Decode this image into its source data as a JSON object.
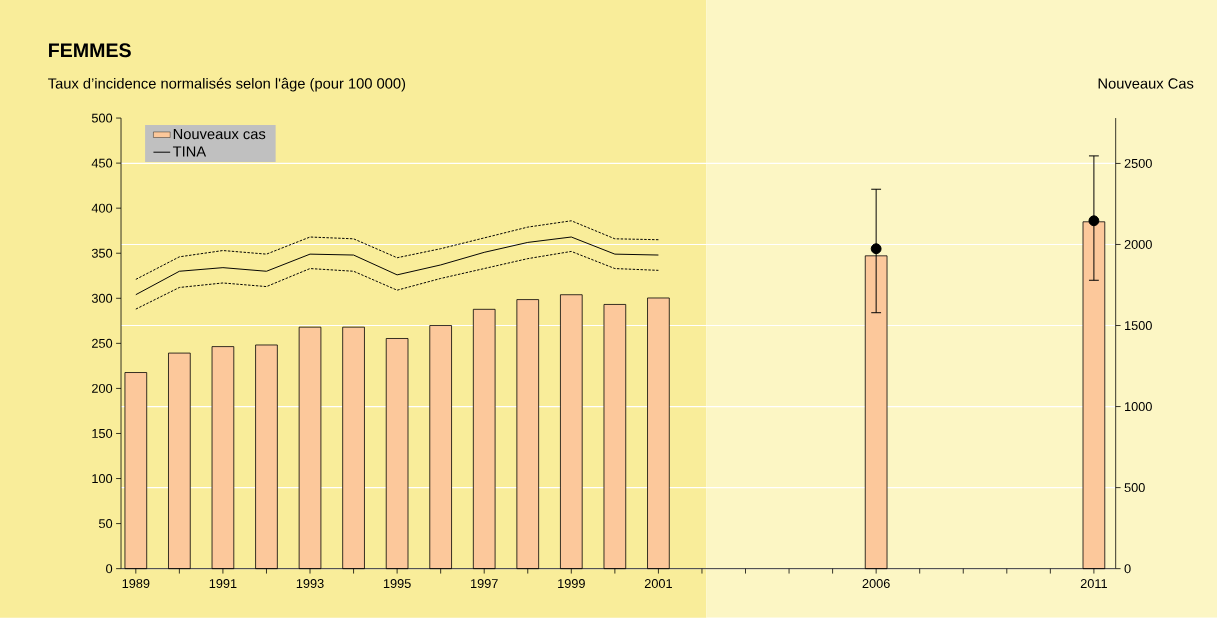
{
  "chart_data": {
    "type": "bar",
    "title": "FEMMES",
    "ylabel": "Taux d’incidence normalisés selon l'âge (pour 100 000)",
    "y2label": "Nouveaux Cas",
    "xlim": [
      1988.66,
      2011.5
    ],
    "xticks": [
      1989,
      {
        "value": 1990,
        "label": null
      },
      1991,
      {
        "value": 1992,
        "label": null
      },
      1993,
      {
        "value": 1994,
        "label": null
      },
      1995,
      {
        "value": 1996,
        "label": null
      },
      1997,
      {
        "value": 1998,
        "label": null
      },
      1999,
      {
        "value": 2000,
        "label": null
      },
      2001,
      {
        "value": 2002,
        "label": null
      },
      {
        "value": 2003,
        "label": null
      },
      {
        "value": 2004,
        "label": null
      },
      {
        "value": 2005,
        "label": null
      },
      2006,
      {
        "value": 2007,
        "label": null
      },
      {
        "value": 2008,
        "label": null
      },
      {
        "value": 2009,
        "label": null
      },
      {
        "value": 2010,
        "label": null
      },
      2011
    ],
    "ylim": [
      0,
      500
    ],
    "yticks": [
      0,
      50,
      100,
      150,
      200,
      250,
      300,
      350,
      400,
      450,
      500
    ],
    "y2lim": [
      0,
      2780
    ],
    "y2ticks": [
      0,
      500,
      1000,
      1500,
      2000,
      2500
    ],
    "grid": "y",
    "legend": "top left",
    "bands": [
      {
        "axis": "x",
        "from": 1988.66,
        "to": 2002.1,
        "color": "#f9ed9a"
      },
      {
        "axis": "x",
        "from": 2002.1,
        "to": 2011.5,
        "color": "#fcf6c4"
      }
    ],
    "series": [
      {
        "name": "Nouveaux cas",
        "axis": "y2",
        "color": "#fcc89b",
        "x": [
          1989,
          1990,
          1991,
          1992,
          1993,
          1994,
          1995,
          1996,
          1997,
          1998,
          1999,
          2000,
          2001,
          2006,
          2011
        ],
        "values": [
          1210,
          1330,
          1370,
          1380,
          1490,
          1490,
          1420,
          1500,
          1600,
          1660,
          1690,
          1630,
          1670,
          1930,
          2140
        ]
      },
      {
        "name": "TINA",
        "type": "line",
        "color": "#000000",
        "x": [
          1989,
          1990,
          1991,
          1992,
          1993,
          1994,
          1995,
          1996,
          1997,
          1998,
          1999,
          2000,
          2001
        ],
        "values": [
          304,
          330,
          334,
          330,
          349,
          348,
          326,
          337,
          351,
          362,
          368,
          349,
          348
        ]
      },
      {
        "type": "line",
        "line_style": "dotted",
        "color": "#000000",
        "x": [
          1989,
          1990,
          1991,
          1992,
          1993,
          1994,
          1995,
          1996,
          1997,
          1998,
          1999,
          2000,
          2001
        ],
        "values": [
          321,
          346,
          353,
          349,
          368,
          366,
          345,
          355,
          367,
          379,
          386,
          366,
          365
        ]
      },
      {
        "type": "line",
        "line_style": "dotted",
        "color": "#000000",
        "x": [
          1989,
          1990,
          1991,
          1992,
          1993,
          1994,
          1995,
          1996,
          1997,
          1998,
          1999,
          2000,
          2001
        ],
        "values": [
          288,
          312,
          317,
          313,
          333,
          330,
          309,
          322,
          333,
          344,
          352,
          333,
          331
        ]
      },
      {
        "type": "scatter",
        "color": "#000000",
        "x": [
          2006,
          2011
        ],
        "values": [
          355,
          386
        ],
        "errors": [
          [
            284,
            421
          ],
          [
            320,
            458
          ]
        ]
      }
    ]
  }
}
